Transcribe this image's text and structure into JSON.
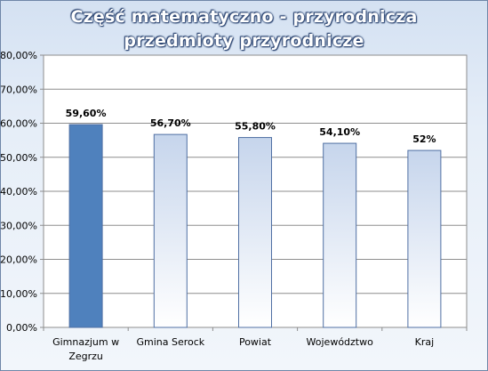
{
  "chart_data": {
    "type": "bar",
    "title_lines": [
      "Część matematyczno - przyrodnicza",
      "przedmioty  przyrodnicze"
    ],
    "categories": [
      [
        "Gimnazjum w",
        "Zegrzu"
      ],
      [
        "Gmina Serock"
      ],
      [
        "Powiat"
      ],
      [
        "Województwo"
      ],
      [
        "Kraj"
      ]
    ],
    "values": [
      59.6,
      56.7,
      55.8,
      54.1,
      52
    ],
    "value_labels": [
      "59,60%",
      "56,70%",
      "55,80%",
      "54,10%",
      "52%"
    ],
    "yticks": [
      "0,00%",
      "10,00%",
      "20,00%",
      "30,00%",
      "40,00%",
      "50,00%",
      "60,00%",
      "70,00%",
      "80,00%"
    ],
    "ylim": [
      0,
      80
    ],
    "grid": true,
    "legend": "none",
    "highlight_color": "#4f81bd",
    "bar_top_color": "#c6d5ec",
    "bar_bottom_color": "#ffffff",
    "bar_border_color": "#4f6fa3"
  }
}
